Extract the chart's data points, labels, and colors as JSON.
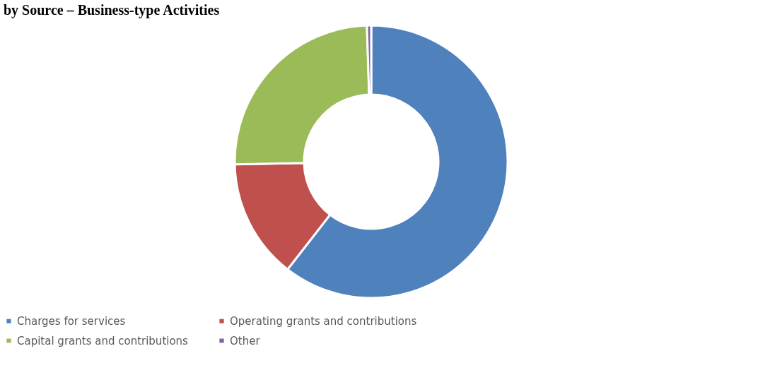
{
  "chart_data": {
    "type": "donut",
    "title": "by Source – Business-type Activities",
    "categories": [
      "Charges for services",
      "Operating grants and contributions",
      "Capital grants and contributions",
      "Other"
    ],
    "values": [
      60.5,
      14.2,
      24.8,
      0.5
    ],
    "colors": [
      "#4f81bd",
      "#c0504d",
      "#9bbb59",
      "#8064a2"
    ],
    "legend": "bottom"
  }
}
